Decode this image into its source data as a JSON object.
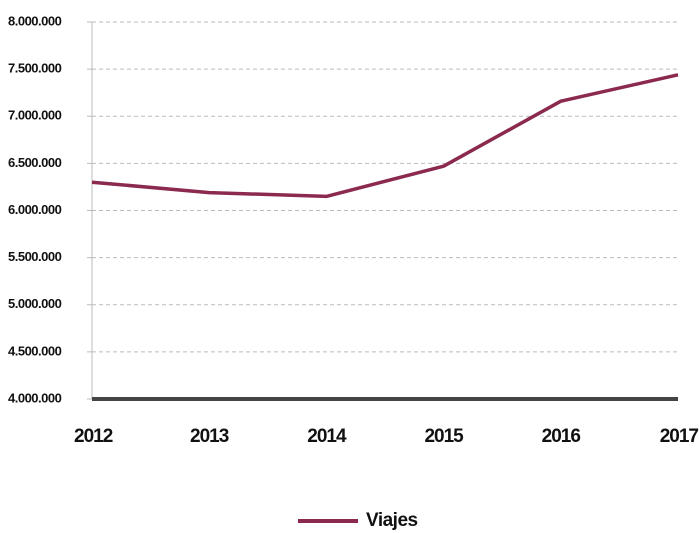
{
  "chart_data": {
    "type": "line",
    "categories": [
      "2012",
      "2013",
      "2014",
      "2015",
      "2016",
      "2017"
    ],
    "series": [
      {
        "name": "Viajes",
        "color": "#8b2a4e",
        "values": [
          6300000,
          6190000,
          6150000,
          6470000,
          7160000,
          7440000
        ]
      }
    ],
    "ylim": [
      4000000,
      8000000
    ],
    "yticks": [
      {
        "value": 4000000,
        "label": "4.000.000"
      },
      {
        "value": 4500000,
        "label": "4.500.000"
      },
      {
        "value": 5000000,
        "label": "5.000.000"
      },
      {
        "value": 5500000,
        "label": "5.500.000"
      },
      {
        "value": 6000000,
        "label": "6.000.000"
      },
      {
        "value": 6500000,
        "label": "6.500.000"
      },
      {
        "value": 7000000,
        "label": "7.000.000"
      },
      {
        "value": 7500000,
        "label": "7.500.000"
      },
      {
        "value": 8000000,
        "label": "8.000.000"
      }
    ],
    "grid": true,
    "legend": "bottom"
  }
}
